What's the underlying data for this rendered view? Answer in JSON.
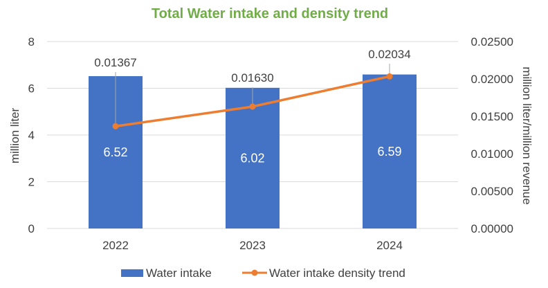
{
  "chart_data": {
    "type": "bar+line",
    "title": "Total Water intake and density trend",
    "categories": [
      "2022",
      "2023",
      "2024"
    ],
    "series": [
      {
        "name": "Water intake",
        "type": "bar",
        "axis": "left",
        "values": [
          6.52,
          6.02,
          6.59
        ],
        "labels": [
          "6.52",
          "6.02",
          "6.59"
        ]
      },
      {
        "name": "Water intake density trend",
        "type": "line",
        "axis": "right",
        "values": [
          0.01367,
          0.0163,
          0.02034
        ],
        "labels": [
          "0.01367",
          "0.01630",
          "0.02034"
        ]
      }
    ],
    "ylabel_left": "million liter",
    "ylabel_right": "million liter/million revenue",
    "ylim_left": [
      0,
      8
    ],
    "ylim_right": [
      0,
      0.025
    ],
    "yticks_left": [
      "0",
      "2",
      "4",
      "6",
      "8"
    ],
    "yticks_right": [
      "0.00000",
      "0.00500",
      "0.01000",
      "0.01500",
      "0.02000",
      "0.02500"
    ],
    "grid": true,
    "legend": "bottom",
    "colors": {
      "title": "#70ad47",
      "bar": "#4472c4",
      "line": "#ed7d31",
      "grid": "#d9d9d9",
      "text": "#404040"
    }
  }
}
